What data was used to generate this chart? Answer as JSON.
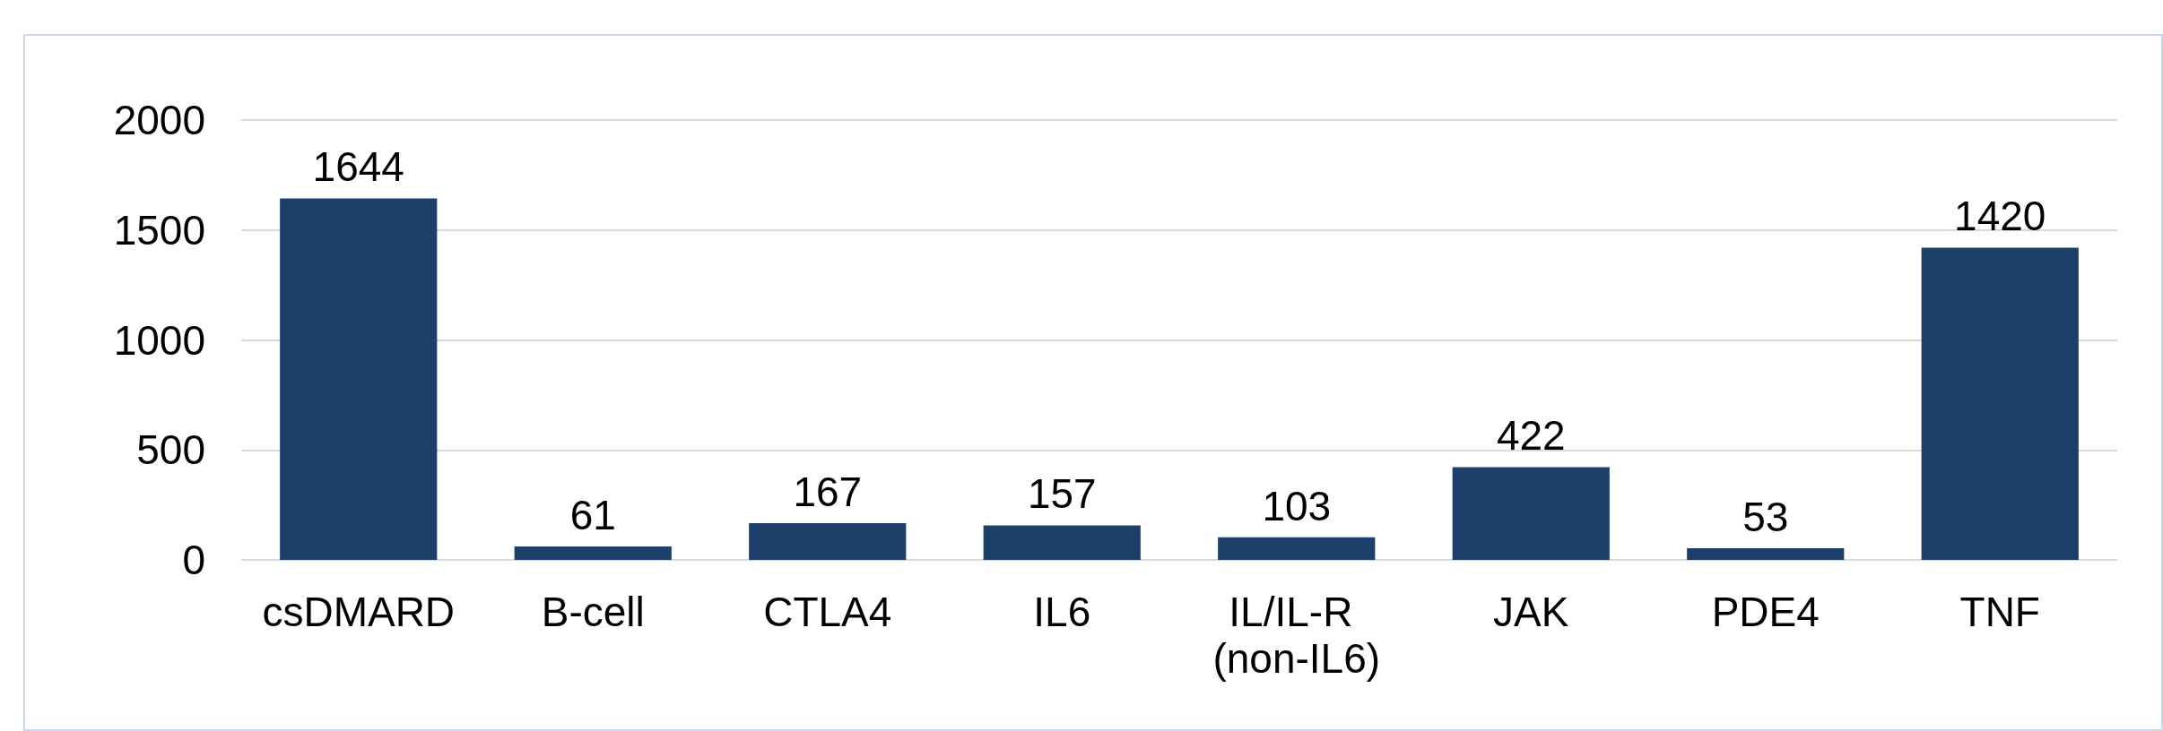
{
  "chart_data": {
    "type": "bar",
    "categories": [
      "csDMARD",
      "B-cell",
      "CTLA4",
      "IL6",
      "IL/IL-R (non-IL6)",
      "JAK",
      "PDE4",
      "TNF"
    ],
    "values": [
      1644,
      61,
      167,
      157,
      103,
      422,
      53,
      1420
    ],
    "color": "#1b416b",
    "ylim": [
      0,
      2000
    ],
    "yticks": [
      0,
      500,
      1000,
      1500,
      2000
    ],
    "grid": "y",
    "data_labels": true
  }
}
